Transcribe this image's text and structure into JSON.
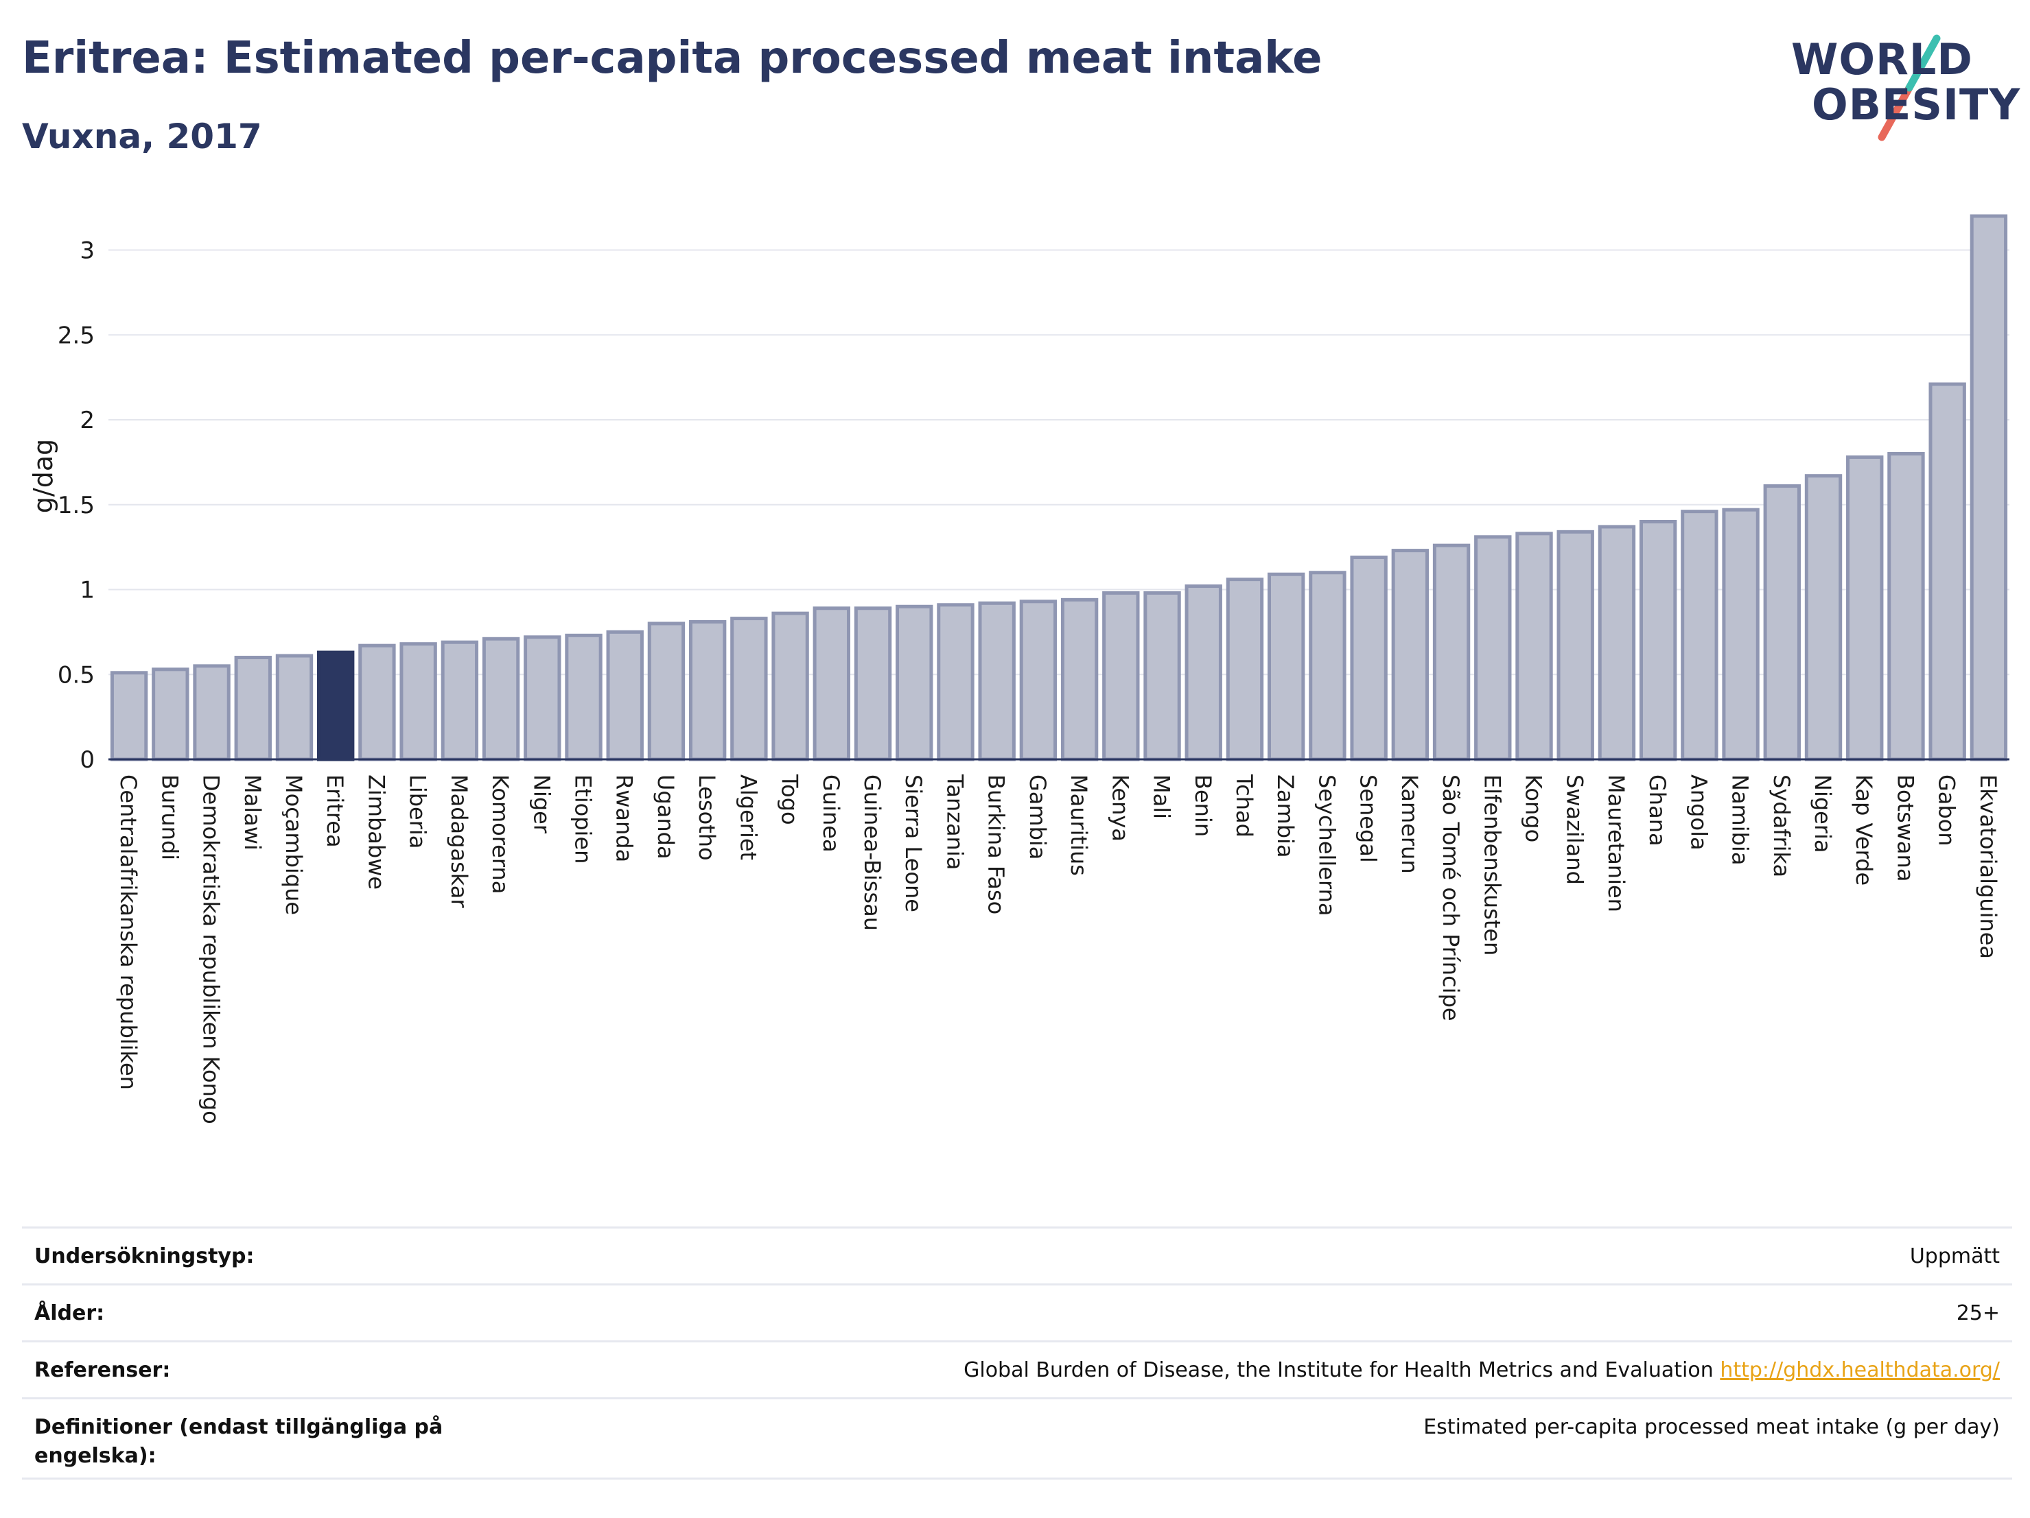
{
  "header": {
    "title": "Eritrea: Estimated per-capita processed meat intake",
    "subtitle": "Vuxna, 2017"
  },
  "logo": {
    "line1": "WORLD",
    "line2": "OBESITY",
    "accent_teal": "#3cbfb0",
    "accent_red": "#e8685a"
  },
  "colors": {
    "bar_fill": "#bcc0cf",
    "bar_stroke": "#8f96b2",
    "highlight_fill": "#2b3761",
    "axis": "#2b3761",
    "grid": "#e4e6ed"
  },
  "chart_data": {
    "type": "bar",
    "title": "Eritrea: Estimated per-capita processed meat intake",
    "subtitle": "Vuxna, 2017",
    "ylabel": "g/dag",
    "xlabel": "",
    "ylim": [
      0,
      3.2
    ],
    "yticks": [
      0,
      0.5,
      1,
      1.5,
      2,
      2.5,
      3
    ],
    "ytick_labels": [
      "0",
      "0.5",
      "1",
      "1.5",
      "2",
      "2.5",
      "3"
    ],
    "grid": true,
    "highlight": "Eritrea",
    "categories": [
      "Centralafrikanska republiken",
      "Burundi",
      "Demokratiska republiken Kongo",
      "Malawi",
      "Moçambique",
      "Eritrea",
      "Zimbabwe",
      "Liberia",
      "Madagaskar",
      "Komorerna",
      "Niger",
      "Etiopien",
      "Rwanda",
      "Uganda",
      "Lesotho",
      "Algeriet",
      "Togo",
      "Guinea",
      "Guinea-Bissau",
      "Sierra Leone",
      "Tanzania",
      "Burkina Faso",
      "Gambia",
      "Mauritius",
      "Kenya",
      "Mali",
      "Benin",
      "Tchad",
      "Zambia",
      "Seychellerna",
      "Senegal",
      "Kamerun",
      "São Tomé och Príncipe",
      "Elfenbenskusten",
      "Kongo",
      "Swaziland",
      "Mauretanien",
      "Ghana",
      "Angola",
      "Namibia",
      "Sydafrika",
      "Nigeria",
      "Kap Verde",
      "Botswana",
      "Gabon",
      "Ekvatorialguinea"
    ],
    "values": [
      0.51,
      0.53,
      0.55,
      0.6,
      0.61,
      0.63,
      0.67,
      0.68,
      0.69,
      0.71,
      0.72,
      0.73,
      0.75,
      0.8,
      0.81,
      0.83,
      0.86,
      0.89,
      0.89,
      0.9,
      0.91,
      0.92,
      0.93,
      0.94,
      0.98,
      0.98,
      1.02,
      1.06,
      1.09,
      1.1,
      1.19,
      1.23,
      1.26,
      1.31,
      1.33,
      1.34,
      1.37,
      1.4,
      1.46,
      1.47,
      1.61,
      1.67,
      1.78,
      1.8,
      2.21,
      3.2
    ]
  },
  "info_table": {
    "rows": [
      {
        "label": "Undersökningstyp:",
        "value": "Uppmätt"
      },
      {
        "label": "Ålder:",
        "value": "25+"
      },
      {
        "label": "Referenser:",
        "value": "Global Burden of Disease, the Institute for Health Metrics and Evaluation",
        "link": "http://ghdx.healthdata.org/"
      },
      {
        "label": "Definitioner (endast tillgängliga på engelska):",
        "value": "Estimated per-capita processed meat intake (g per day)"
      }
    ]
  }
}
